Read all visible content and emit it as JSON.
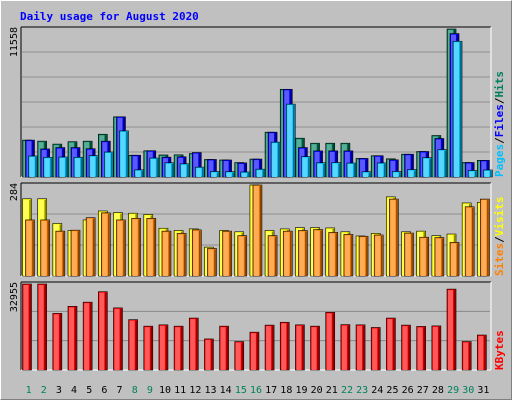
{
  "chart_data": {
    "type": "bar",
    "title": "Daily usage for August 2020",
    "categories": [
      "1",
      "2",
      "3",
      "4",
      "5",
      "6",
      "7",
      "8",
      "9",
      "10",
      "11",
      "12",
      "13",
      "14",
      "15",
      "16",
      "17",
      "18",
      "19",
      "20",
      "21",
      "22",
      "23",
      "24",
      "25",
      "26",
      "27",
      "28",
      "29",
      "30",
      "31"
    ],
    "weekend_days": [
      "1",
      "2",
      "8",
      "9",
      "15",
      "16",
      "22",
      "23",
      "29",
      "30"
    ],
    "colors": {
      "hits": "#00805c",
      "files": "#0000ff",
      "pages": "#00c0ff",
      "visits": "#ffff00",
      "sites": "#ff8000",
      "kbytes": "#ff0000",
      "title": "#0000ff",
      "weekend_label": "#00805c",
      "weekday_label": "#000000",
      "background": "#c0c0c0",
      "grid": "#808080"
    },
    "panels": [
      {
        "name": "hits-files-pages",
        "ymax_label": "11558",
        "ylim": [
          0,
          11558
        ],
        "legend": [
          "Pages",
          "/",
          "Files",
          "/",
          "Hits"
        ],
        "series": [
          {
            "name": "Hits",
            "values": [
              2880,
              2800,
              2570,
              2760,
              2800,
              3340,
              4700,
              1700,
              2050,
              1720,
              1730,
              1830,
              1370,
              1330,
              1130,
              1400,
              3500,
              6850,
              3030,
              2640,
              2640,
              2640,
              1450,
              1660,
              1420,
              1780,
              1990,
              3240,
              11558,
              1130,
              1300
            ]
          },
          {
            "name": "Files",
            "values": [
              2880,
              2190,
              2300,
              2300,
              2210,
              2800,
              4700,
              1700,
              2050,
              1550,
              1580,
              1910,
              1370,
              1330,
              1100,
              1400,
              3500,
              6850,
              2300,
              2040,
              2040,
              2040,
              1450,
              1660,
              1340,
              1780,
              1990,
              3010,
              11200,
              1130,
              1300
            ]
          },
          {
            "name": "Pages",
            "values": [
              1640,
              1540,
              1560,
              1540,
              1670,
              1950,
              3600,
              560,
              1480,
              1110,
              1030,
              770,
              430,
              420,
              390,
              610,
              2720,
              5690,
              1590,
              1110,
              1130,
              1090,
              410,
              1100,
              430,
              580,
              1510,
              2140,
              10600,
              510,
              550
            ]
          }
        ]
      },
      {
        "name": "visits-sites",
        "ymax_label": "284",
        "ylim": [
          0,
          284
        ],
        "legend": [
          "Sites",
          "/",
          "Visits"
        ],
        "series": [
          {
            "name": "Visits",
            "values": [
              241,
              241,
              164,
              142,
              175,
              203,
              198,
              196,
              192,
              149,
              142,
              147,
              90,
              142,
              138,
              284,
              142,
              147,
              151,
              151,
              150,
              138,
              125,
              133,
              247,
              138,
              140,
              126,
              131,
              228,
              230
            ]
          },
          {
            "name": "Sites",
            "values": [
              175,
              175,
              140,
              143,
              182,
              197,
              175,
              180,
              180,
              140,
              133,
              144,
              86,
              140,
              126,
              284,
              126,
              140,
              142,
              145,
              136,
              130,
              124,
              128,
              240,
              134,
              121,
              120,
              105,
              216,
              240
            ]
          }
        ]
      },
      {
        "name": "kbytes",
        "ymax_label": "32955",
        "ylim": [
          0,
          32955
        ],
        "legend": [
          "KBytes"
        ],
        "series": [
          {
            "name": "KBytes",
            "values": [
              32955,
              32955,
              21700,
              24400,
              26000,
              30000,
              23800,
              19300,
              16800,
              17300,
              16800,
              19900,
              11900,
              16800,
              10900,
              14500,
              17200,
              18300,
              17300,
              16800,
              22100,
              17400,
              17300,
              16300,
              19900,
              17200,
              16700,
              16900,
              31000,
              10900,
              13400
            ]
          }
        ]
      }
    ]
  }
}
